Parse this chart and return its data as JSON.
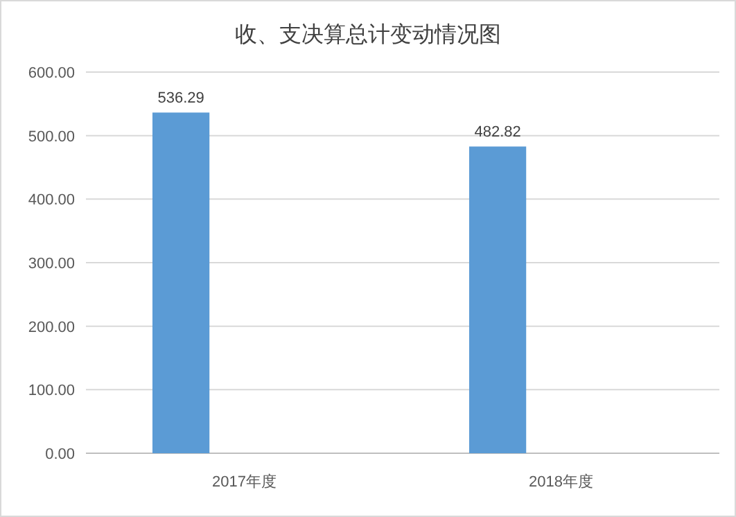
{
  "chart_data": {
    "type": "bar",
    "title": "收、支决算总计变动情况图",
    "categories": [
      "2017年度",
      "2018年度"
    ],
    "values": [
      536.29,
      482.82
    ],
    "color": "#5b9bd5",
    "data_labels": true,
    "ylim": [
      0,
      600
    ],
    "yticks": [
      {
        "value": 0,
        "label": "0.00"
      },
      {
        "value": 100,
        "label": "100.00"
      },
      {
        "value": 200,
        "label": "200.00"
      },
      {
        "value": 300,
        "label": "300.00"
      },
      {
        "value": 400,
        "label": "400.00"
      },
      {
        "value": 500,
        "label": "500.00"
      },
      {
        "value": 600,
        "label": "600.00"
      }
    ],
    "grid": "y"
  }
}
